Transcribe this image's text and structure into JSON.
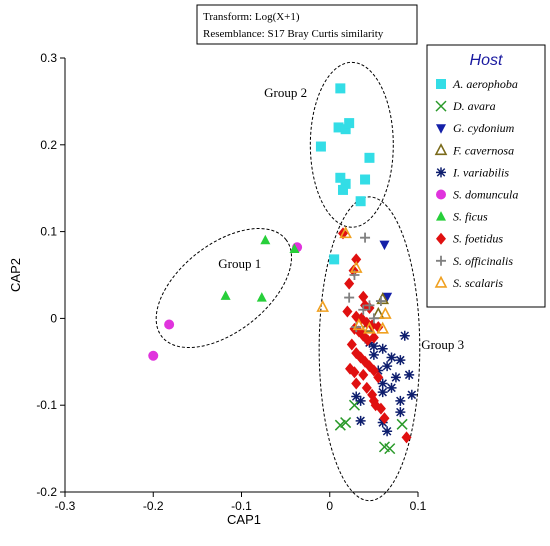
{
  "chart_data": {
    "type": "scatter",
    "title": "",
    "xlabel": "CAP1",
    "ylabel": "CAP2",
    "xlim": [
      -0.3,
      0.1
    ],
    "ylim": [
      -0.2,
      0.3
    ],
    "xticks": [
      -0.3,
      -0.2,
      -0.1,
      0,
      0.1
    ],
    "yticks": [
      -0.2,
      -0.1,
      0,
      0.1,
      0.2,
      0.3
    ],
    "xtick_labels": [
      "-0.3",
      "-0.2",
      "-0.1",
      "0",
      "0.1"
    ],
    "ytick_labels": [
      "-0.2",
      "-0.1",
      "0",
      "0.1",
      "0.2",
      "0.3"
    ],
    "grid": false,
    "transform_box": [
      "Transform: Log(X+1)",
      "Resemblance: S17 Bray Curtis similarity"
    ],
    "legend": {
      "title": "Host",
      "placement": "right",
      "title_color": "#1a1aa0"
    },
    "groups": [
      {
        "label": "Group 1",
        "center": [
          -0.12,
          0.035
        ],
        "rx": 0.09,
        "ry": 0.05,
        "angle": 38
      },
      {
        "label": "Group 2",
        "center": [
          0.025,
          0.2
        ],
        "rx": 0.047,
        "ry": 0.095,
        "angle": 0
      },
      {
        "label": "Group 3",
        "center": [
          0.045,
          -0.035
        ],
        "rx": 0.057,
        "ry": 0.175,
        "angle": 0
      }
    ],
    "series": [
      {
        "name": "A. aerophoba",
        "marker": "square",
        "color": "#33dde6",
        "points": [
          [
            0.012,
            0.265
          ],
          [
            0.01,
            0.22
          ],
          [
            0.018,
            0.218
          ],
          [
            0.022,
            0.225
          ],
          [
            -0.01,
            0.198
          ],
          [
            0.045,
            0.185
          ],
          [
            0.012,
            0.162
          ],
          [
            0.018,
            0.155
          ],
          [
            0.015,
            0.148
          ],
          [
            0.04,
            0.16
          ],
          [
            0.035,
            0.135
          ],
          [
            0.005,
            0.068
          ]
        ]
      },
      {
        "name": "D. avara",
        "marker": "x",
        "color": "#2a9a2a",
        "points": [
          [
            0.012,
            -0.123
          ],
          [
            0.018,
            -0.12
          ],
          [
            0.028,
            -0.1
          ],
          [
            0.062,
            -0.148
          ],
          [
            0.068,
            -0.15
          ],
          [
            0.082,
            -0.122
          ]
        ]
      },
      {
        "name": "G. cydonium",
        "marker": "triangle-down",
        "color": "#1520a8",
        "points": [
          [
            0.062,
            0.085
          ],
          [
            0.065,
            0.025
          ]
        ]
      },
      {
        "name": "F. cavernosa",
        "marker": "triangle-up-open",
        "color": "#7a6a1a",
        "points": [
          [
            0.055,
            0.005
          ],
          [
            0.042,
            -0.01
          ],
          [
            0.06,
            0.022
          ]
        ]
      },
      {
        "name": "I. variabilis",
        "marker": "asterisk",
        "color": "#0e1e6e",
        "points": [
          [
            0.045,
            -0.028
          ],
          [
            0.05,
            -0.032
          ],
          [
            0.06,
            -0.035
          ],
          [
            0.085,
            -0.02
          ],
          [
            0.07,
            -0.045
          ],
          [
            0.08,
            -0.048
          ],
          [
            0.065,
            -0.055
          ],
          [
            0.055,
            -0.06
          ],
          [
            0.075,
            -0.068
          ],
          [
            0.05,
            -0.042
          ],
          [
            0.06,
            -0.075
          ],
          [
            0.09,
            -0.065
          ],
          [
            0.07,
            -0.08
          ],
          [
            0.03,
            -0.09
          ],
          [
            0.035,
            -0.095
          ],
          [
            0.06,
            -0.085
          ],
          [
            0.08,
            -0.095
          ],
          [
            0.093,
            -0.088
          ],
          [
            0.08,
            -0.108
          ],
          [
            0.035,
            -0.118
          ],
          [
            0.06,
            -0.12
          ],
          [
            0.065,
            -0.13
          ]
        ]
      },
      {
        "name": "S. domuncula",
        "marker": "circle",
        "color": "#e033dd",
        "points": [
          [
            -0.037,
            0.082
          ],
          [
            -0.182,
            -0.007
          ],
          [
            -0.2,
            -0.043
          ]
        ]
      },
      {
        "name": "S. ficus",
        "marker": "triangle-up",
        "color": "#27cf3a",
        "points": [
          [
            -0.073,
            0.09
          ],
          [
            -0.118,
            0.026
          ],
          [
            -0.077,
            0.024
          ],
          [
            -0.04,
            0.08
          ]
        ]
      },
      {
        "name": "S. foetidus",
        "marker": "diamond",
        "color": "#e01010",
        "points": [
          [
            0.015,
            0.098
          ],
          [
            0.03,
            0.068
          ],
          [
            0.027,
            0.055
          ],
          [
            0.022,
            0.04
          ],
          [
            0.038,
            0.025
          ],
          [
            0.04,
            0.015
          ],
          [
            0.045,
            0.012
          ],
          [
            0.02,
            0.008
          ],
          [
            0.03,
            0.002
          ],
          [
            0.036,
            0.0
          ],
          [
            0.042,
            -0.005
          ],
          [
            0.048,
            -0.008
          ],
          [
            0.055,
            -0.01
          ],
          [
            0.028,
            -0.012
          ],
          [
            0.033,
            -0.015
          ],
          [
            0.038,
            -0.02
          ],
          [
            0.043,
            -0.025
          ],
          [
            0.05,
            -0.022
          ],
          [
            0.025,
            -0.03
          ],
          [
            0.03,
            -0.04
          ],
          [
            0.035,
            -0.045
          ],
          [
            0.04,
            -0.05
          ],
          [
            0.045,
            -0.055
          ],
          [
            0.05,
            -0.06
          ],
          [
            0.028,
            -0.062
          ],
          [
            0.038,
            -0.065
          ],
          [
            0.023,
            -0.058
          ],
          [
            0.055,
            -0.068
          ],
          [
            0.03,
            -0.075
          ],
          [
            0.042,
            -0.08
          ],
          [
            0.048,
            -0.088
          ],
          [
            0.05,
            -0.095
          ],
          [
            0.052,
            -0.1
          ],
          [
            0.058,
            -0.104
          ],
          [
            0.062,
            -0.115
          ],
          [
            0.087,
            -0.137
          ]
        ]
      },
      {
        "name": "S. officinalis",
        "marker": "plus",
        "color": "#808080",
        "points": [
          [
            0.04,
            0.093
          ],
          [
            0.022,
            0.024
          ],
          [
            0.028,
            0.05
          ],
          [
            0.038,
            0.01
          ],
          [
            0.03,
            -0.01
          ],
          [
            0.045,
            0.015
          ],
          [
            0.058,
            0.02
          ],
          [
            0.05,
            0.0
          ]
        ]
      },
      {
        "name": "S. scalaris",
        "marker": "triangle-up-open",
        "color": "#f0a020",
        "points": [
          [
            0.018,
            0.098
          ],
          [
            0.03,
            0.058
          ],
          [
            -0.008,
            0.013
          ],
          [
            0.033,
            -0.008
          ],
          [
            0.045,
            -0.012
          ],
          [
            0.06,
            -0.012
          ],
          [
            0.063,
            0.005
          ]
        ]
      }
    ]
  }
}
